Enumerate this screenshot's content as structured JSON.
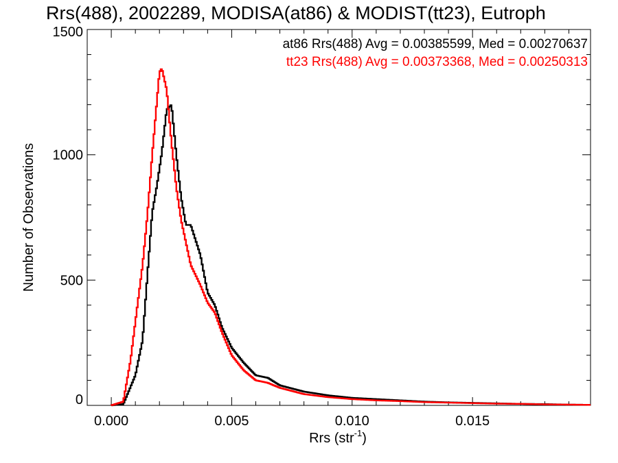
{
  "chart_data": {
    "type": "line",
    "style": "histogram-step",
    "title": "Rrs(488), 2002289, MODISA(at86) & MODIST(tt23), Eutroph",
    "xlabel": "Rrs (str",
    "xlabel_sup": "-1",
    "xlabel_tail": ")",
    "ylabel": "Number of Observations",
    "xlim": [
      -0.001,
      0.0199
    ],
    "ylim": [
      0,
      1500
    ],
    "xticks": [
      0.0,
      0.005,
      0.01,
      0.015
    ],
    "xtick_labels": [
      "0.000",
      "0.005",
      "0.010",
      "0.015"
    ],
    "yticks": [
      0,
      500,
      1000,
      1500
    ],
    "ytick_labels": [
      "0",
      "500",
      "1000",
      "1500"
    ],
    "grid": false,
    "legend_position": "top-right",
    "annotations": [
      {
        "text": "at86 Rrs(488) Avg = 0.00385599, Med = 0.00270637",
        "color": "#000000"
      },
      {
        "text": "tt23 Rrs(488) Avg = 0.00373368, Med = 0.00250313",
        "color": "#ff0000"
      }
    ],
    "series": [
      {
        "color": "#000000",
        "points": [
          [
            0.0,
            0
          ],
          [
            0.0005,
            5
          ],
          [
            0.001,
            120
          ],
          [
            0.0013,
            260
          ],
          [
            0.0015,
            520
          ],
          [
            0.0017,
            770
          ],
          [
            0.0019,
            880
          ],
          [
            0.0021,
            1010
          ],
          [
            0.0023,
            1180
          ],
          [
            0.0025,
            1200
          ],
          [
            0.0027,
            1000
          ],
          [
            0.0029,
            830
          ],
          [
            0.0031,
            720
          ],
          [
            0.0033,
            720
          ],
          [
            0.0035,
            660
          ],
          [
            0.0037,
            600
          ],
          [
            0.004,
            450
          ],
          [
            0.0043,
            400
          ],
          [
            0.0046,
            310
          ],
          [
            0.005,
            230
          ],
          [
            0.0055,
            170
          ],
          [
            0.006,
            120
          ],
          [
            0.0065,
            110
          ],
          [
            0.007,
            80
          ],
          [
            0.008,
            55
          ],
          [
            0.009,
            40
          ],
          [
            0.01,
            30
          ],
          [
            0.011,
            25
          ],
          [
            0.012,
            20
          ],
          [
            0.013,
            15
          ],
          [
            0.014,
            12
          ],
          [
            0.015,
            10
          ],
          [
            0.016,
            8
          ],
          [
            0.017,
            6
          ],
          [
            0.018,
            5
          ],
          [
            0.019,
            3
          ],
          [
            0.0199,
            2
          ]
        ]
      },
      {
        "color": "#ff0000",
        "points": [
          [
            0.0,
            0
          ],
          [
            0.0005,
            15
          ],
          [
            0.0008,
            180
          ],
          [
            0.0011,
            410
          ],
          [
            0.0013,
            560
          ],
          [
            0.0015,
            760
          ],
          [
            0.0017,
            1000
          ],
          [
            0.0019,
            1220
          ],
          [
            0.002,
            1330
          ],
          [
            0.0021,
            1345
          ],
          [
            0.0023,
            1260
          ],
          [
            0.0025,
            1050
          ],
          [
            0.0027,
            870
          ],
          [
            0.0029,
            740
          ],
          [
            0.0031,
            650
          ],
          [
            0.0033,
            560
          ],
          [
            0.0035,
            520
          ],
          [
            0.0037,
            480
          ],
          [
            0.004,
            410
          ],
          [
            0.0043,
            370
          ],
          [
            0.0046,
            290
          ],
          [
            0.005,
            200
          ],
          [
            0.0055,
            140
          ],
          [
            0.006,
            100
          ],
          [
            0.0065,
            90
          ],
          [
            0.007,
            70
          ],
          [
            0.008,
            45
          ],
          [
            0.009,
            33
          ],
          [
            0.01,
            25
          ],
          [
            0.011,
            20
          ],
          [
            0.012,
            17
          ],
          [
            0.013,
            13
          ],
          [
            0.014,
            11
          ],
          [
            0.015,
            9
          ],
          [
            0.016,
            7
          ],
          [
            0.017,
            6
          ],
          [
            0.018,
            4
          ],
          [
            0.019,
            3
          ],
          [
            0.0199,
            2
          ]
        ]
      }
    ]
  }
}
